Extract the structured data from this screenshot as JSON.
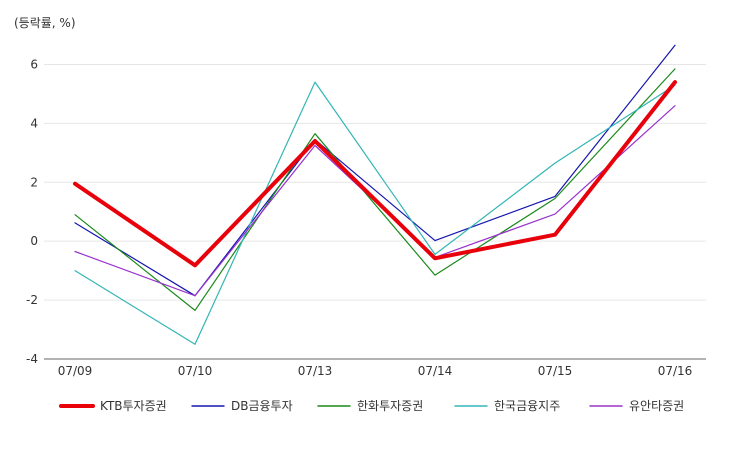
{
  "chart_data": {
    "type": "line",
    "unit_label": "(등락률, %)",
    "categories": [
      "07/09",
      "07/10",
      "07/13",
      "07/14",
      "07/15",
      "07/16"
    ],
    "ylim": [
      -4,
      7
    ],
    "yticks": [
      -4,
      -2,
      0,
      2,
      4,
      6
    ],
    "grid": true,
    "legend_position": "bottom",
    "series": [
      {
        "name": "KTB투자증권",
        "color": "#e8000b",
        "width": 4,
        "values": [
          1.95,
          -0.82,
          3.4,
          -0.58,
          0.22,
          5.4
        ]
      },
      {
        "name": "DB금융투자",
        "color": "#1515b0",
        "width": 1.2,
        "values": [
          0.62,
          -1.85,
          3.45,
          0.02,
          1.52,
          6.65
        ]
      },
      {
        "name": "한화투자증권",
        "color": "#1a8a1a",
        "width": 1.2,
        "values": [
          0.9,
          -2.35,
          3.65,
          -1.15,
          1.45,
          5.85
        ]
      },
      {
        "name": "한국금융지주",
        "color": "#33b5b5",
        "width": 1.2,
        "values": [
          -1.0,
          -3.5,
          5.4,
          -0.45,
          2.65,
          5.3
        ]
      },
      {
        "name": "유안타증권",
        "color": "#9933cc",
        "width": 1.2,
        "values": [
          -0.35,
          -1.85,
          3.25,
          -0.55,
          0.92,
          4.6
        ]
      }
    ]
  }
}
